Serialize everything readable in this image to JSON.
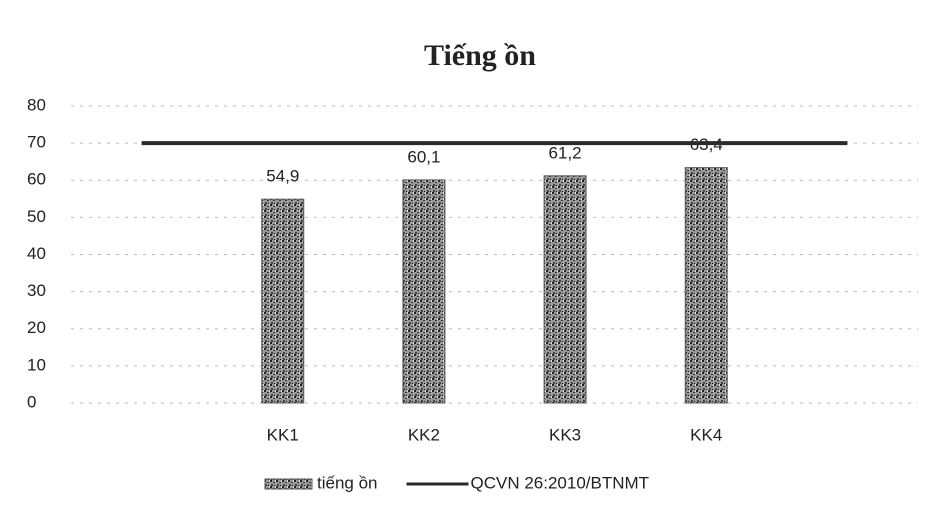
{
  "chart_data": {
    "type": "bar",
    "title": "Tiếng ồn",
    "categories": [
      null,
      "KK1",
      "KK2",
      "KK3",
      "KK4",
      null
    ],
    "series": [
      {
        "name": "tiếng ồn",
        "type": "bar",
        "color": "#5a5a5a",
        "values": [
          null,
          54.9,
          60.1,
          61.2,
          63.4,
          null
        ],
        "value_labels": [
          null,
          "54,9",
          "60,1",
          "61,2",
          "63,4",
          null
        ]
      },
      {
        "name": "QCVN 26:2010/BTNMT",
        "type": "line",
        "color": "#2a2a2a",
        "values": [
          70,
          70,
          70,
          70,
          70,
          70
        ]
      }
    ],
    "ylim": [
      0,
      80
    ],
    "yticks": [
      0,
      10,
      20,
      30,
      40,
      50,
      60,
      70,
      80
    ],
    "grid": true,
    "legend": "bottom"
  }
}
